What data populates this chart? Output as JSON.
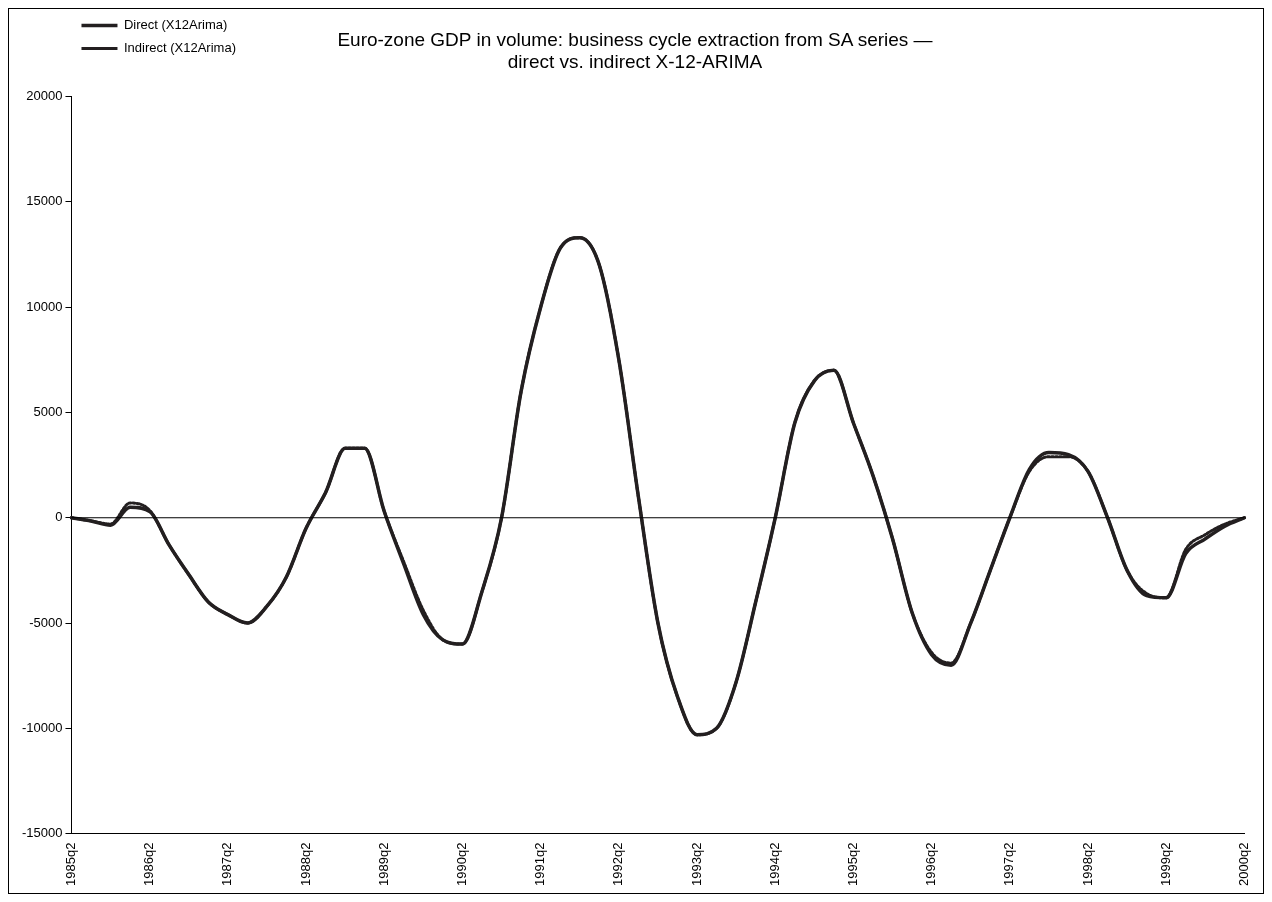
{
  "chart_data": {
    "type": "line",
    "title": "Euro-zone GDP in volume: business cycle extraction from SA series —\ndirect vs. indirect X-12-ARIMA",
    "categories": [
      "1985q2",
      null,
      null,
      null,
      "1986q2",
      null,
      null,
      null,
      "1987q2",
      null,
      null,
      null,
      "1988q2",
      null,
      null,
      null,
      "1989q2",
      null,
      null,
      null,
      "1990q2",
      null,
      null,
      null,
      "1991q2",
      null,
      null,
      null,
      "1992q2",
      null,
      null,
      null,
      "1993q2",
      null,
      null,
      null,
      "1994q2",
      null,
      null,
      null,
      "1995q2",
      null,
      null,
      null,
      "1996q2",
      null,
      null,
      null,
      "1997q2",
      null,
      null,
      null,
      "1998q2",
      null,
      null,
      null,
      "1999q2",
      null,
      null,
      null,
      "2000q2"
    ],
    "series": [
      {
        "name": "Direct (X12Arima)",
        "color": "#231f20",
        "line_style": "solid",
        "values": [
          0,
          -150,
          -350,
          500,
          300,
          -1300,
          -2700,
          -4000,
          -4600,
          -5000,
          -4200,
          -2800,
          -500,
          1200,
          3300,
          3300,
          300,
          -2200,
          -4600,
          -5800,
          -6000,
          -3500,
          0,
          6000,
          10000,
          12800,
          13300,
          12000,
          7500,
          1000,
          -5000,
          -8500,
          -10300,
          -10000,
          -7800,
          -4000,
          0,
          4500,
          6500,
          7000,
          4500,
          2000,
          -1000,
          -4500,
          -6500,
          -7000,
          -5000,
          -2500,
          0,
          2300,
          3100,
          3000,
          2200,
          0,
          -2500,
          -3700,
          -3800,
          -1700,
          -1000,
          -400,
          0
        ]
      },
      {
        "name": "Indirect (X12Arima)",
        "color": "#231f20",
        "line_style": "dotted",
        "values": [
          0,
          -150,
          -300,
          700,
          350,
          -1300,
          -2700,
          -4000,
          -4600,
          -5000,
          -4200,
          -2800,
          -500,
          1200,
          3300,
          3300,
          300,
          -2100,
          -4400,
          -5800,
          -6000,
          -3500,
          0,
          6000,
          10000,
          12800,
          13300,
          12000,
          7500,
          1000,
          -5000,
          -8500,
          -10300,
          -10000,
          -7800,
          -4000,
          0,
          4500,
          6500,
          7000,
          4500,
          2000,
          -1000,
          -4500,
          -6400,
          -6900,
          -5000,
          -2500,
          0,
          2200,
          2900,
          2900,
          2200,
          0,
          -2500,
          -3600,
          -3800,
          -1500,
          -800,
          -300,
          0
        ]
      }
    ],
    "ylim": [
      -15000,
      20000
    ],
    "yticks": [
      -15000,
      -10000,
      -5000,
      0,
      5000,
      10000,
      15000,
      20000
    ],
    "ref_lines": [
      {
        "axis": "y",
        "value": 0,
        "color": "#000000"
      }
    ],
    "grid": false,
    "legend": "top left",
    "marker": "none"
  }
}
